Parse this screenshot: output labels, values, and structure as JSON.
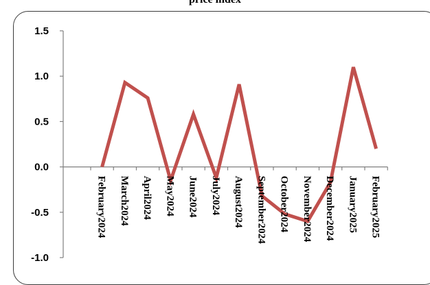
{
  "chart_data": {
    "type": "line",
    "title": "price index",
    "categories": [
      "February2024",
      "March2024",
      "April2024",
      "May2024",
      "June2024",
      "July2024",
      "August2024",
      "September2024",
      "October2024",
      "November2024",
      "December2024",
      "January2025",
      "February2025"
    ],
    "series": [
      {
        "values": [
          0.0,
          0.93,
          0.76,
          -0.15,
          0.58,
          -0.12,
          0.91,
          -0.32,
          -0.52,
          -0.6,
          -0.17,
          1.1,
          0.2
        ]
      }
    ],
    "ylim": [
      -1.0,
      1.5
    ],
    "yticks": [
      "1.5",
      "1.0",
      "0.5",
      "0.0",
      "-0.5",
      "-1.0"
    ],
    "line_color": "#c0504d",
    "grid": false,
    "legend": "none"
  }
}
